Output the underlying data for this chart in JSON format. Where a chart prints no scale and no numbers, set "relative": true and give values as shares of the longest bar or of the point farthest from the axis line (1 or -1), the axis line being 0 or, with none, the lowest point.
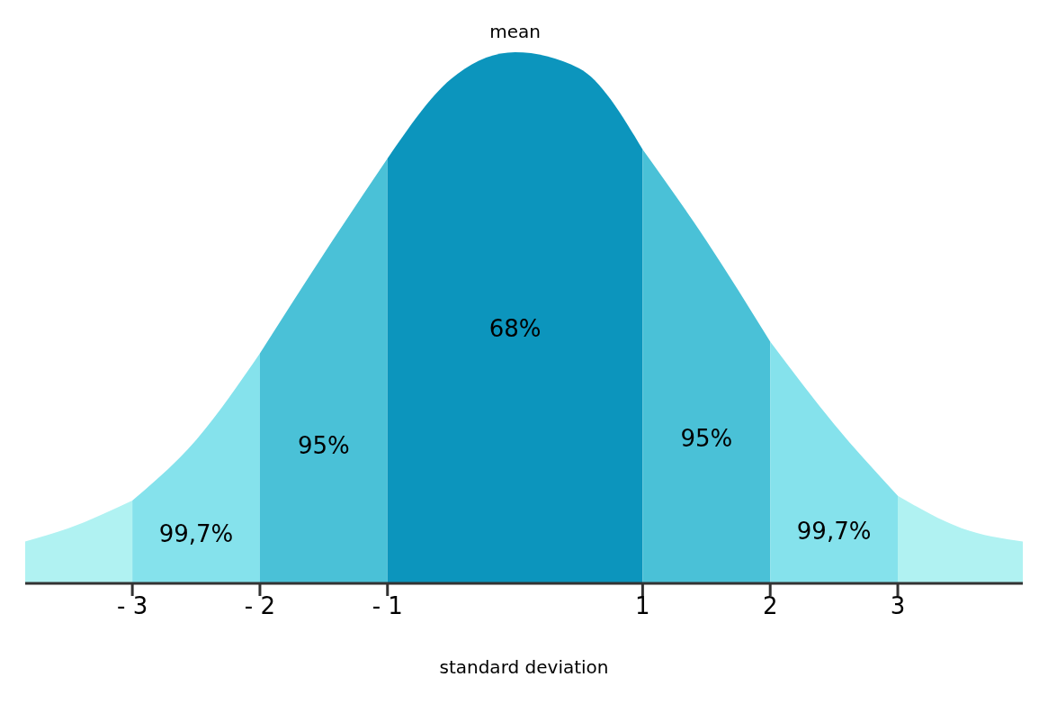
{
  "chart_data": {
    "type": "area",
    "relative": true,
    "xlabel": "standard deviation",
    "xlim": [
      -3.84,
      3.98
    ],
    "xticks": [
      {
        "value": -3,
        "label": "- 3"
      },
      {
        "value": -2,
        "label": "- 2"
      },
      {
        "value": -1,
        "label": "- 1"
      },
      1,
      2,
      3
    ],
    "legend": false,
    "grid": false,
    "series": [
      {
        "color": "#b0f2f2",
        "x": [
          -3.84,
          -3.5,
          -3
        ],
        "values": [
          0.079,
          0.104,
          0.156
        ]
      },
      {
        "color": "#85e2ec",
        "x": [
          -3,
          -2.5,
          -2
        ],
        "values": [
          0.156,
          0.27,
          0.433
        ]
      },
      {
        "color": "#4ac1d7",
        "x": [
          -2,
          -1.5,
          -1
        ],
        "values": [
          0.433,
          0.62,
          0.8
        ]
      },
      {
        "color": "#0c95bd",
        "x": [
          -1,
          -0.5,
          0,
          0.5,
          1
        ],
        "values": [
          0.8,
          0.95,
          1,
          0.97,
          0.817
        ]
      },
      {
        "color": "#4ac1d7",
        "x": [
          1,
          1.5,
          2
        ],
        "values": [
          0.817,
          0.645,
          0.455
        ]
      },
      {
        "color": "#85e2ec",
        "x": [
          2,
          2.5,
          3
        ],
        "values": [
          0.455,
          0.3,
          0.165
        ]
      },
      {
        "color": "#b0f2f2",
        "x": [
          3,
          3.5,
          3.98
        ],
        "values": [
          0.165,
          0.104,
          0.079
        ]
      }
    ],
    "annotations": [
      {
        "text": "mean",
        "x": 0,
        "y": 1
      },
      "99,7%",
      "95%",
      "68%",
      "95%",
      "99,7%"
    ]
  }
}
